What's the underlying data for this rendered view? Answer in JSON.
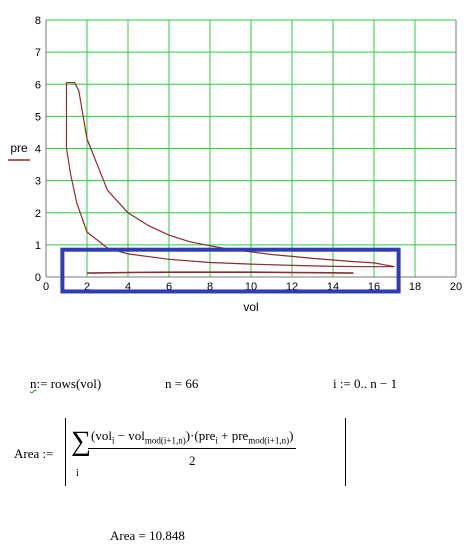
{
  "colors": {
    "grid": "#2ecc40",
    "curve": "#8b2d2d",
    "selection": "#2f3db5",
    "axis": "#7a7a7a",
    "legend_line": "#8b2d2d"
  },
  "chart_data": {
    "type": "line",
    "xlabel": "vol",
    "ylabel": "pre",
    "xlim": [
      0,
      20
    ],
    "ylim": [
      0,
      8
    ],
    "x_ticks": [
      "0",
      "2",
      "4",
      "6",
      "8",
      "10",
      "12",
      "14",
      "16",
      "18",
      "20"
    ],
    "y_ticks": [
      "0",
      "1",
      "2",
      "3",
      "4",
      "5",
      "6",
      "7",
      "8"
    ],
    "grid": true,
    "series": [
      {
        "x": [
          1,
          1.4,
          1.6,
          2,
          3,
          4,
          5,
          6,
          7,
          8,
          9,
          10,
          11,
          12,
          13,
          14,
          15,
          16,
          17,
          16,
          14,
          12,
          10,
          8,
          6,
          4,
          3,
          2,
          1.5,
          1.2,
          1,
          1
        ],
        "y": [
          6.05,
          6.05,
          5.8,
          4.3,
          2.7,
          2.0,
          1.6,
          1.3,
          1.1,
          0.97,
          0.86,
          0.78,
          0.7,
          0.64,
          0.58,
          0.53,
          0.48,
          0.44,
          0.32,
          0.32,
          0.33,
          0.36,
          0.4,
          0.45,
          0.55,
          0.72,
          0.9,
          1.4,
          2.3,
          3.2,
          4.0,
          6.05
        ]
      },
      {
        "x": [
          2,
          4,
          6,
          8,
          10,
          12,
          14,
          15
        ],
        "y": [
          0.12,
          0.14,
          0.15,
          0.15,
          0.15,
          0.14,
          0.13,
          0.12
        ]
      }
    ],
    "selection_box": {
      "x": [
        0.8,
        17.2
      ],
      "y": [
        -0.45,
        0.85
      ]
    }
  },
  "equations": {
    "n_def_var": "n",
    "n_def_rest": ":= rows(vol)",
    "n_value": "n = 66",
    "range_def": "i := 0.. n − 1",
    "area_lhs": "Area :=",
    "sum_symbol": "∑",
    "sum_index": "i",
    "num_text_1": "(vol",
    "num_sub_1": "i",
    "num_text_2": " − vol",
    "num_sub_2": "mod(i+1,n)",
    "num_text_3": ")·(pre",
    "num_sub_3": "i",
    "num_text_4": " + pre",
    "num_sub_4": "mod(i+1,n)",
    "num_text_5": ")",
    "denominator": "2",
    "area_result": "Area = 10.848"
  }
}
